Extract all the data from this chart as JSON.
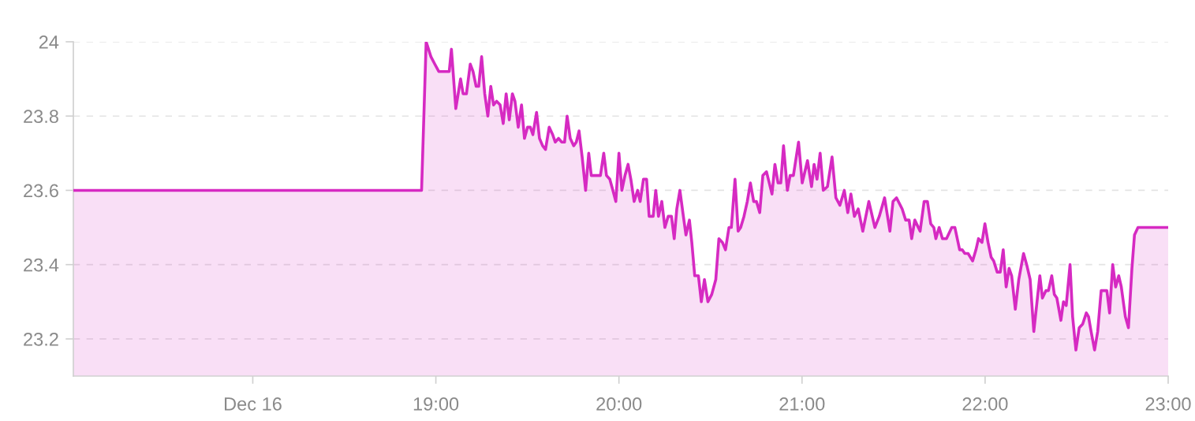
{
  "chart_data": {
    "type": "area",
    "x": [
      17.02,
      18.922,
      18.947,
      18.973,
      18.994,
      19.016,
      19.073,
      19.085,
      19.109,
      19.135,
      19.149,
      19.167,
      19.188,
      19.203,
      19.22,
      19.234,
      19.25,
      19.267,
      19.284,
      19.3,
      19.315,
      19.332,
      19.351,
      19.368,
      19.384,
      19.401,
      19.418,
      19.432,
      19.45,
      19.468,
      19.484,
      19.501,
      19.516,
      19.53,
      19.55,
      19.566,
      19.583,
      19.599,
      19.619,
      19.638,
      19.652,
      19.67,
      19.687,
      19.703,
      19.717,
      19.734,
      19.753,
      19.767,
      19.782,
      19.799,
      19.818,
      19.835,
      19.849,
      19.899,
      19.917,
      19.932,
      19.95,
      19.967,
      19.983,
      20.0,
      20.016,
      20.033,
      20.05,
      20.065,
      20.083,
      20.102,
      20.116,
      20.134,
      20.151,
      20.165,
      20.187,
      20.201,
      20.216,
      20.234,
      20.251,
      20.269,
      20.287,
      20.302,
      20.316,
      20.333,
      20.352,
      20.366,
      20.385,
      20.398,
      20.414,
      20.434,
      20.45,
      20.467,
      20.486,
      20.507,
      20.529,
      20.546,
      20.565,
      20.582,
      20.601,
      20.614,
      20.634,
      20.651,
      20.665,
      20.683,
      20.701,
      20.718,
      20.736,
      20.751,
      20.769,
      20.786,
      20.806,
      20.836,
      20.852,
      20.869,
      20.884,
      20.899,
      20.92,
      20.935,
      20.953,
      20.981,
      21.001,
      21.03,
      21.052,
      21.066,
      21.082,
      21.099,
      21.116,
      21.139,
      21.164,
      21.185,
      21.207,
      21.231,
      21.25,
      21.267,
      21.286,
      21.307,
      21.332,
      21.365,
      21.398,
      21.422,
      21.451,
      21.48,
      21.497,
      21.516,
      21.547,
      21.566,
      21.585,
      21.599,
      21.616,
      21.645,
      21.667,
      21.685,
      21.703,
      21.72,
      21.731,
      21.749,
      21.767,
      21.789,
      21.818,
      21.835,
      21.861,
      21.875,
      21.889,
      21.907,
      21.932,
      21.95,
      21.964,
      21.983,
      21.999,
      22.016,
      22.033,
      22.047,
      22.066,
      22.083,
      22.099,
      22.115,
      22.131,
      22.145,
      22.165,
      22.184,
      22.21,
      22.227,
      22.246,
      22.266,
      22.299,
      22.313,
      22.332,
      22.346,
      22.364,
      22.378,
      22.392,
      22.414,
      22.428,
      22.443,
      22.464,
      22.478,
      22.496,
      22.514,
      22.533,
      22.553,
      22.565,
      22.579,
      22.598,
      22.615,
      22.634,
      22.665,
      22.68,
      22.697,
      22.713,
      22.73,
      22.744,
      22.766,
      22.783,
      22.802,
      22.816,
      22.835,
      23.0
    ],
    "series": [
      {
        "color": "#d62ac2",
        "values": [
          23.6,
          23.6,
          24.0,
          23.96,
          23.94,
          23.92,
          23.92,
          23.98,
          23.82,
          23.9,
          23.86,
          23.86,
          23.94,
          23.92,
          23.88,
          23.88,
          23.96,
          23.86,
          23.8,
          23.88,
          23.83,
          23.84,
          23.83,
          23.78,
          23.86,
          23.79,
          23.86,
          23.84,
          23.77,
          23.83,
          23.74,
          23.77,
          23.77,
          23.75,
          23.81,
          23.74,
          23.72,
          23.71,
          23.77,
          23.75,
          23.73,
          23.74,
          23.73,
          23.73,
          23.8,
          23.74,
          23.72,
          23.73,
          23.76,
          23.69,
          23.6,
          23.7,
          23.64,
          23.64,
          23.7,
          23.64,
          23.63,
          23.6,
          23.57,
          23.7,
          23.6,
          23.64,
          23.67,
          23.63,
          23.57,
          23.6,
          23.57,
          23.63,
          23.63,
          23.53,
          23.53,
          23.6,
          23.53,
          23.57,
          23.5,
          23.53,
          23.53,
          23.47,
          23.55,
          23.6,
          23.53,
          23.48,
          23.52,
          23.46,
          23.37,
          23.37,
          23.3,
          23.36,
          23.3,
          23.32,
          23.36,
          23.47,
          23.46,
          23.44,
          23.5,
          23.5,
          23.63,
          23.49,
          23.5,
          23.53,
          23.57,
          23.62,
          23.57,
          23.57,
          23.54,
          23.64,
          23.65,
          23.59,
          23.67,
          23.62,
          23.62,
          23.72,
          23.6,
          23.64,
          23.64,
          23.73,
          23.62,
          23.68,
          23.61,
          23.67,
          23.63,
          23.7,
          23.6,
          23.61,
          23.69,
          23.58,
          23.56,
          23.6,
          23.54,
          23.59,
          23.53,
          23.55,
          23.49,
          23.57,
          23.5,
          23.53,
          23.58,
          23.49,
          23.57,
          23.58,
          23.55,
          23.52,
          23.52,
          23.47,
          23.52,
          23.49,
          23.57,
          23.57,
          23.51,
          23.5,
          23.47,
          23.5,
          23.47,
          23.47,
          23.5,
          23.5,
          23.44,
          23.44,
          23.43,
          23.43,
          23.41,
          23.44,
          23.47,
          23.46,
          23.51,
          23.46,
          23.42,
          23.41,
          23.38,
          23.38,
          23.44,
          23.34,
          23.39,
          23.37,
          23.28,
          23.36,
          23.43,
          23.4,
          23.36,
          23.22,
          23.37,
          23.31,
          23.33,
          23.33,
          23.37,
          23.32,
          23.31,
          23.25,
          23.3,
          23.29,
          23.4,
          23.26,
          23.17,
          23.23,
          23.24,
          23.27,
          23.26,
          23.22,
          23.17,
          23.22,
          23.33,
          23.33,
          23.27,
          23.4,
          23.34,
          23.37,
          23.34,
          23.26,
          23.23,
          23.39,
          23.48,
          23.5,
          23.5
        ]
      }
    ],
    "xlim": [
      17.02,
      23.0
    ],
    "xticks": [
      {
        "value": 18,
        "label": "Dec 16"
      },
      {
        "value": 19,
        "label": "19:00"
      },
      {
        "value": 20,
        "label": "20:00"
      },
      {
        "value": 21,
        "label": "21:00"
      },
      {
        "value": 22,
        "label": "22:00"
      },
      {
        "value": 23,
        "label": "23:00"
      }
    ],
    "ylim": [
      23.1,
      24.0
    ],
    "yticks": [
      23.2,
      23.4,
      23.6,
      23.8,
      24
    ],
    "grid": "y"
  }
}
